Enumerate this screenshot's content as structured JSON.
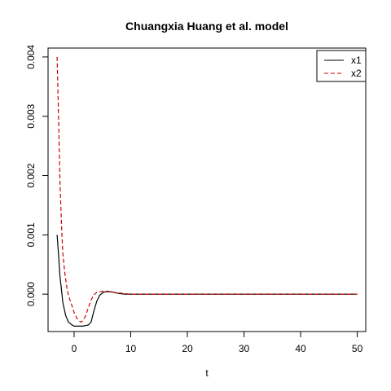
{
  "chart_data": {
    "type": "line",
    "title": "Chuangxia Huang et al. model",
    "xlabel": "t",
    "ylabel": "",
    "xlim": [
      -4.6,
      51.5
    ],
    "ylim": [
      -0.00063,
      0.00415
    ],
    "x_ticks": [
      0,
      10,
      20,
      30,
      40,
      50
    ],
    "x_tick_labels": [
      "0",
      "10",
      "20",
      "30",
      "40",
      "50"
    ],
    "y_ticks": [
      0.0,
      0.001,
      0.002,
      0.003,
      0.004
    ],
    "y_tick_labels": [
      "0.000",
      "0.001",
      "0.002",
      "0.003",
      "0.004"
    ],
    "legend_position": "top-right",
    "series": [
      {
        "name": "x1",
        "color": "#000000",
        "dash": "solid",
        "x": [
          -3,
          -2.7,
          -2.5,
          -2.2,
          -2,
          -1.5,
          -1,
          -0.5,
          0,
          0.5,
          1,
          1.5,
          2,
          2.5,
          3,
          3.5,
          4,
          4.5,
          5,
          5.5,
          6,
          6.5,
          7,
          7.5,
          8,
          9,
          10,
          15,
          20,
          30,
          40,
          50
        ],
        "values": [
          0.001,
          0.0006,
          0.0003,
          5e-05,
          -0.00014,
          -0.00036,
          -0.00047,
          -0.00051,
          -0.00054,
          -0.00054,
          -0.00054,
          -0.00054,
          -0.00053,
          -0.00052,
          -0.00047,
          -0.00028,
          -0.00012,
          -2e-05,
          2e-05,
          4e-05,
          4e-05,
          4e-05,
          3e-05,
          2e-05,
          1e-05,
          0.0,
          0.0,
          0.0,
          0.0,
          0.0,
          0.0,
          0.0
        ]
      },
      {
        "name": "x2",
        "color": "#cc0000",
        "dash": "dashed",
        "x": [
          -3,
          -2.7,
          -2.5,
          -2.2,
          -2,
          -1.7,
          -1.5,
          -1.2,
          -1,
          -0.5,
          0,
          0.5,
          1,
          1.3,
          1.5,
          2,
          2.5,
          3,
          3.5,
          4,
          5,
          6,
          7,
          8,
          9,
          10,
          15,
          20,
          30,
          40,
          50
        ],
        "values": [
          0.004,
          0.0028,
          0.0019,
          0.0011,
          0.0007,
          0.0004,
          0.00025,
          7e-05,
          -2e-05,
          -0.00016,
          -0.00031,
          -0.00041,
          -0.00046,
          -0.00047,
          -0.00045,
          -0.00037,
          -0.00023,
          -0.0001,
          -1e-05,
          3e-05,
          5e-05,
          5e-05,
          3e-05,
          2e-05,
          1e-05,
          0.0,
          0.0,
          0.0,
          0.0,
          0.0,
          0.0
        ]
      }
    ]
  }
}
